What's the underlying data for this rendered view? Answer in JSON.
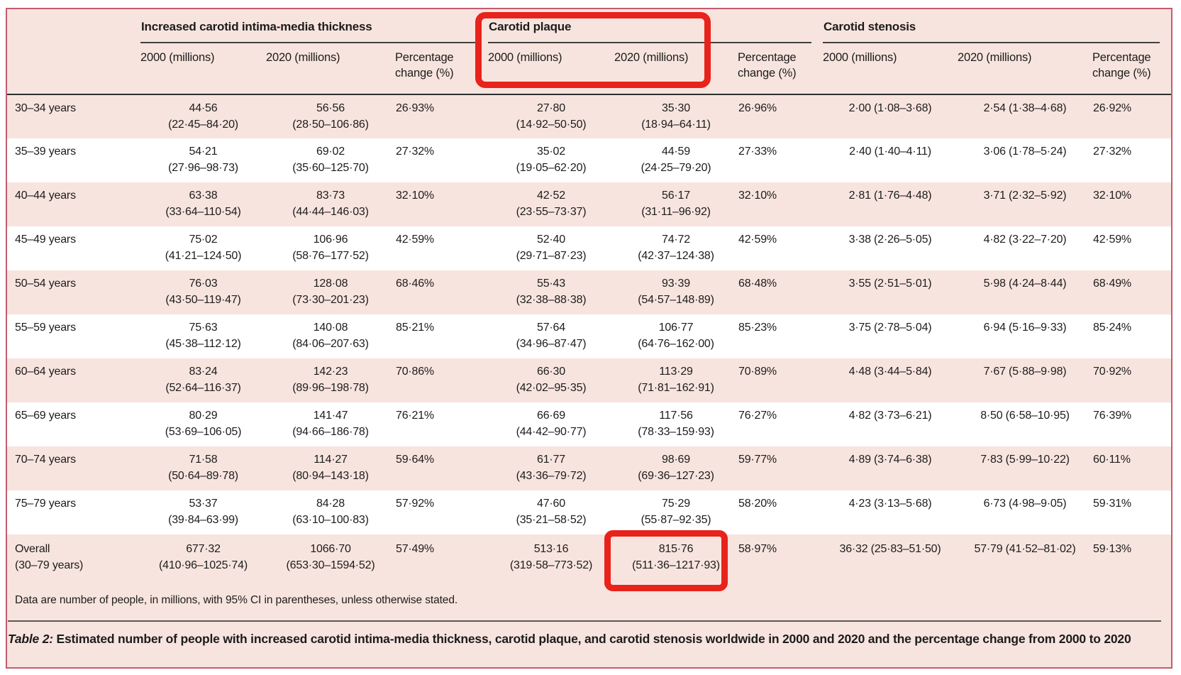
{
  "colors": {
    "figure_background": "#f8e4de",
    "figure_border": "#c35d6e",
    "row_alt_white": "#ffffff",
    "rule_dark": "#2e2e2e",
    "annotation_red": "#e8231b"
  },
  "table": {
    "groups": [
      {
        "label": "Increased carotid intima-media thickness"
      },
      {
        "label": "Carotid plaque"
      },
      {
        "label": "Carotid stenosis"
      }
    ],
    "sub_headers": [
      "2000 (millions)",
      "2020 (millions)",
      "Percentage change (%)"
    ],
    "rows": [
      {
        "label": "30–34 years",
        "cells": [
          {
            "v": "44·56",
            "ci": "(22·45–84·20)"
          },
          {
            "v": "56·56",
            "ci": "(28·50–106·86)"
          },
          {
            "v": "26·93%"
          },
          {
            "v": "27·80",
            "ci": "(14·92–50·50)"
          },
          {
            "v": "35·30",
            "ci": "(18·94–64·11)"
          },
          {
            "v": "26·96%"
          },
          {
            "v": "2·00 (1·08–3·68)"
          },
          {
            "v": "2·54 (1·38–4·68)"
          },
          {
            "v": "26·92%"
          }
        ]
      },
      {
        "label": "35–39 years",
        "cells": [
          {
            "v": "54·21",
            "ci": "(27·96–98·73)"
          },
          {
            "v": "69·02",
            "ci": "(35·60–125·70)"
          },
          {
            "v": "27·32%"
          },
          {
            "v": "35·02",
            "ci": "(19·05–62·20)"
          },
          {
            "v": "44·59",
            "ci": "(24·25–79·20)"
          },
          {
            "v": "27·33%"
          },
          {
            "v": "2·40 (1·40–4·11)"
          },
          {
            "v": "3·06 (1·78–5·24)"
          },
          {
            "v": "27·32%"
          }
        ]
      },
      {
        "label": "40–44 years",
        "cells": [
          {
            "v": "63·38",
            "ci": "(33·64–110·54)"
          },
          {
            "v": "83·73",
            "ci": "(44·44–146·03)"
          },
          {
            "v": "32·10%"
          },
          {
            "v": "42·52",
            "ci": "(23·55–73·37)"
          },
          {
            "v": "56·17",
            "ci": "(31·11–96·92)"
          },
          {
            "v": "32·10%"
          },
          {
            "v": "2·81 (1·76–4·48)"
          },
          {
            "v": "3·71 (2·32–5·92)"
          },
          {
            "v": "32·10%"
          }
        ]
      },
      {
        "label": "45–49 years",
        "cells": [
          {
            "v": "75·02",
            "ci": "(41·21–124·50)"
          },
          {
            "v": "106·96",
            "ci": "(58·76–177·52)"
          },
          {
            "v": "42·59%"
          },
          {
            "v": "52·40",
            "ci": "(29·71–87·23)"
          },
          {
            "v": "74·72",
            "ci": "(42·37–124·38)"
          },
          {
            "v": "42·59%"
          },
          {
            "v": "3·38 (2·26–5·05)"
          },
          {
            "v": "4·82 (3·22–7·20)"
          },
          {
            "v": "42·59%"
          }
        ]
      },
      {
        "label": "50–54 years",
        "cells": [
          {
            "v": "76·03",
            "ci": "(43·50–119·47)"
          },
          {
            "v": "128·08",
            "ci": "(73·30–201·23)"
          },
          {
            "v": "68·46%"
          },
          {
            "v": "55·43",
            "ci": "(32·38–88·38)"
          },
          {
            "v": "93·39",
            "ci": "(54·57–148·89)"
          },
          {
            "v": "68·48%"
          },
          {
            "v": "3·55 (2·51–5·01)"
          },
          {
            "v": "5·98 (4·24–8·44)"
          },
          {
            "v": "68·49%"
          }
        ]
      },
      {
        "label": "55–59 years",
        "cells": [
          {
            "v": "75·63",
            "ci": "(45·38–112·12)"
          },
          {
            "v": "140·08",
            "ci": "(84·06–207·63)"
          },
          {
            "v": "85·21%"
          },
          {
            "v": "57·64",
            "ci": "(34·96–87·47)"
          },
          {
            "v": "106·77",
            "ci": "(64·76–162·00)"
          },
          {
            "v": "85·23%"
          },
          {
            "v": "3·75 (2·78–5·04)"
          },
          {
            "v": "6·94 (5·16–9·33)"
          },
          {
            "v": "85·24%"
          }
        ]
      },
      {
        "label": "60–64 years",
        "cells": [
          {
            "v": "83·24",
            "ci": "(52·64–116·37)"
          },
          {
            "v": "142·23",
            "ci": "(89·96–198·78)"
          },
          {
            "v": "70·86%"
          },
          {
            "v": "66·30",
            "ci": "(42·02–95·35)"
          },
          {
            "v": "113·29",
            "ci": "(71·81–162·91)"
          },
          {
            "v": "70·89%"
          },
          {
            "v": "4·48 (3·44–5·84)"
          },
          {
            "v": "7·67 (5·88–9·98)"
          },
          {
            "v": "70·92%"
          }
        ]
      },
      {
        "label": "65–69 years",
        "cells": [
          {
            "v": "80·29",
            "ci": "(53·69–106·05)"
          },
          {
            "v": "141·47",
            "ci": "(94·66–186·78)"
          },
          {
            "v": "76·21%"
          },
          {
            "v": "66·69",
            "ci": "(44·42–90·77)"
          },
          {
            "v": "117·56",
            "ci": "(78·33–159·93)"
          },
          {
            "v": "76·27%"
          },
          {
            "v": "4·82 (3·73–6·21)"
          },
          {
            "v": "8·50 (6·58–10·95)"
          },
          {
            "v": "76·39%"
          }
        ]
      },
      {
        "label": "70–74 years",
        "cells": [
          {
            "v": "71·58",
            "ci": "(50·64–89·78)"
          },
          {
            "v": "114·27",
            "ci": "(80·94–143·18)"
          },
          {
            "v": "59·64%"
          },
          {
            "v": "61·77",
            "ci": "(43·36–79·72)"
          },
          {
            "v": "98·69",
            "ci": "(69·36–127·23)"
          },
          {
            "v": "59·77%"
          },
          {
            "v": "4·89 (3·74–6·38)"
          },
          {
            "v": "7·83 (5·99–10·22)"
          },
          {
            "v": "60·11%"
          }
        ]
      },
      {
        "label": "75–79 years",
        "cells": [
          {
            "v": "53·37",
            "ci": "(39·84–63·99)"
          },
          {
            "v": "84·28",
            "ci": "(63·10–100·83)"
          },
          {
            "v": "57·92%"
          },
          {
            "v": "47·60",
            "ci": "(35·21–58·52)"
          },
          {
            "v": "75·29",
            "ci": "(55·87–92·35)"
          },
          {
            "v": "58·20%"
          },
          {
            "v": "4·23 (3·13–5·68)"
          },
          {
            "v": "6·73 (4·98–9·05)"
          },
          {
            "v": "59·31%"
          }
        ]
      },
      {
        "label": "Overall",
        "label2": "(30–79 years)",
        "cells": [
          {
            "v": "677·32",
            "ci": "(410·96–1025·74)"
          },
          {
            "v": "1066·70",
            "ci": "(653·30–1594·52)"
          },
          {
            "v": "57·49%"
          },
          {
            "v": "513·16",
            "ci": "(319·58–773·52)"
          },
          {
            "v": "815·76",
            "ci": "(511·36–1217·93)"
          },
          {
            "v": "58·97%"
          },
          {
            "v": "36·32 (25·83–51·50)"
          },
          {
            "v": "57·79 (41·52–81·02)"
          },
          {
            "v": "59·13%"
          }
        ]
      }
    ],
    "footnote": "Data are number of people, in millions, with 95% CI in parentheses, unless otherwise stated.",
    "caption": {
      "label": "Table 2:",
      "text": " Estimated number of people with increased carotid intima-media thickness, carotid plaque, and carotid stenosis worldwide in 2000 and 2020 and the percentage change from 2000 to 2020"
    }
  },
  "annotations": {
    "color": "#e8231b",
    "boxes": [
      {
        "name": "highlight-carotid-plaque-columns"
      },
      {
        "name": "highlight-overall-carotid-plaque-2020"
      }
    ]
  }
}
